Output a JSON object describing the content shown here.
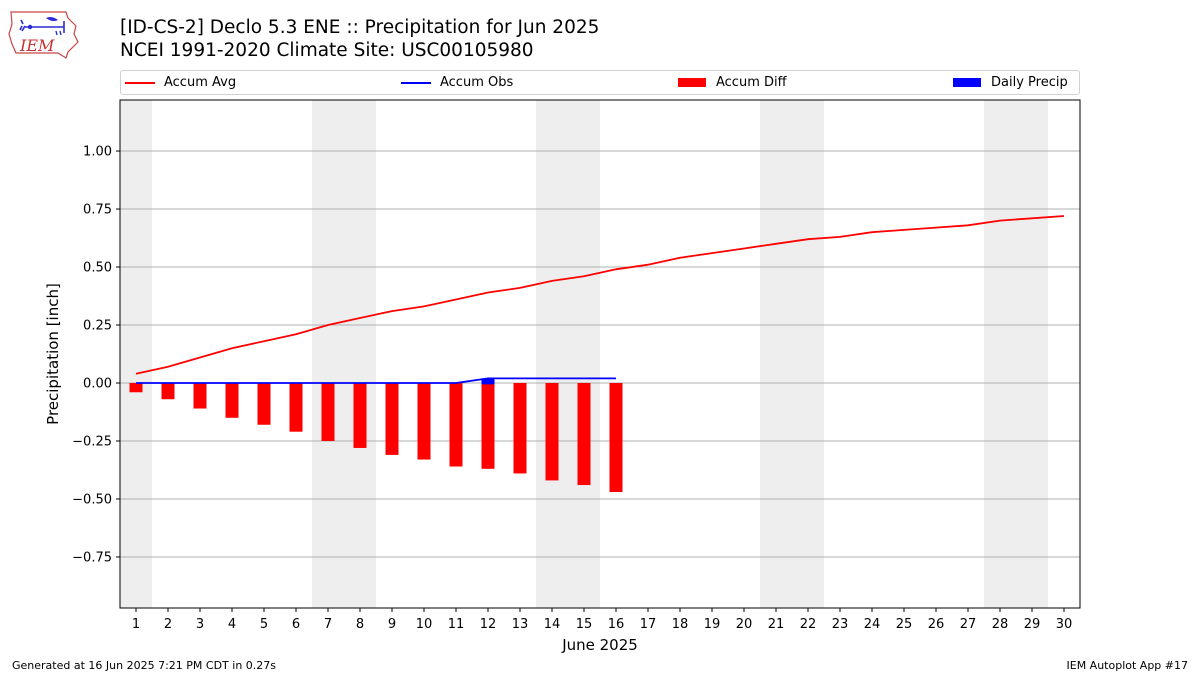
{
  "header": {
    "title_line1": "[ID-CS-2] Declo 5.3 ENE :: Precipitation for Jun 2025",
    "title_line2": "NCEI 1991-2020 Climate Site: USC00105980"
  },
  "logo": {
    "text": "IEM",
    "icon": "iem-iowa-logo"
  },
  "footer": {
    "left": "Generated at 16 Jun 2025 7:21 PM CDT in 0.27s",
    "right": "IEM Autoplot App #17"
  },
  "legend": {
    "accum_avg": "Accum Avg",
    "accum_obs": "Accum Obs",
    "accum_diff": "Accum Diff",
    "daily_precip": "Daily Precip"
  },
  "colors": {
    "avg": "#ff0000",
    "obs": "#0000ff",
    "diff": "#ff0000",
    "daily": "#0000ff",
    "weekend": "#eeeeee",
    "grid": "#b0b0b0"
  },
  "chart_data": {
    "type": "line",
    "xlabel": "June 2025",
    "ylabel": "Precipitation [inch]",
    "xlim": [
      0.5,
      30.5
    ],
    "ylim": [
      -0.97,
      1.22
    ],
    "yticks": [
      -0.75,
      -0.5,
      -0.25,
      0.0,
      0.25,
      0.5,
      0.75,
      1.0
    ],
    "ytick_labels": [
      "−0.75",
      "−0.50",
      "−0.25",
      "0.00",
      "0.25",
      "0.50",
      "0.75",
      "1.00"
    ],
    "xticks": [
      1,
      2,
      3,
      4,
      5,
      6,
      7,
      8,
      9,
      10,
      11,
      12,
      13,
      14,
      15,
      16,
      17,
      18,
      19,
      20,
      21,
      22,
      23,
      24,
      25,
      26,
      27,
      28,
      29,
      30
    ],
    "weekend_spans": [
      [
        0.5,
        1.5
      ],
      [
        6.5,
        8.5
      ],
      [
        13.5,
        15.5
      ],
      [
        20.5,
        22.5
      ],
      [
        27.5,
        29.5
      ]
    ],
    "grid": true,
    "legend_position": "top",
    "series": [
      {
        "name": "Accum Avg",
        "kind": "line",
        "x": [
          1,
          2,
          3,
          4,
          5,
          6,
          7,
          8,
          9,
          10,
          11,
          12,
          13,
          14,
          15,
          16,
          17,
          18,
          19,
          20,
          21,
          22,
          23,
          24,
          25,
          26,
          27,
          28,
          29,
          30
        ],
        "values": [
          0.04,
          0.07,
          0.11,
          0.15,
          0.18,
          0.21,
          0.25,
          0.28,
          0.31,
          0.33,
          0.36,
          0.39,
          0.41,
          0.44,
          0.46,
          0.49,
          0.51,
          0.54,
          0.56,
          0.58,
          0.6,
          0.62,
          0.63,
          0.65,
          0.66,
          0.67,
          0.68,
          0.7,
          0.71,
          0.72
        ]
      },
      {
        "name": "Accum Obs",
        "kind": "line",
        "x": [
          1,
          2,
          3,
          4,
          5,
          6,
          7,
          8,
          9,
          10,
          11,
          12,
          13,
          14,
          15,
          16
        ],
        "values": [
          0,
          0,
          0,
          0,
          0,
          0,
          0,
          0,
          0,
          0,
          0,
          0.02,
          0.02,
          0.02,
          0.02,
          0.02
        ]
      },
      {
        "name": "Accum Diff",
        "kind": "bar",
        "x": [
          1,
          2,
          3,
          4,
          5,
          6,
          7,
          8,
          9,
          10,
          11,
          12,
          13,
          14,
          15,
          16
        ],
        "values": [
          -0.04,
          -0.07,
          -0.11,
          -0.15,
          -0.18,
          -0.21,
          -0.25,
          -0.28,
          -0.31,
          -0.33,
          -0.36,
          -0.37,
          -0.39,
          -0.42,
          -0.44,
          -0.47
        ]
      },
      {
        "name": "Daily Precip",
        "kind": "bar",
        "x": [
          1,
          2,
          3,
          4,
          5,
          6,
          7,
          8,
          9,
          10,
          11,
          12,
          13,
          14,
          15,
          16
        ],
        "values": [
          0,
          0,
          0,
          0,
          0,
          0,
          0,
          0,
          0,
          0,
          0,
          0.02,
          0,
          0,
          0,
          0
        ]
      }
    ]
  }
}
